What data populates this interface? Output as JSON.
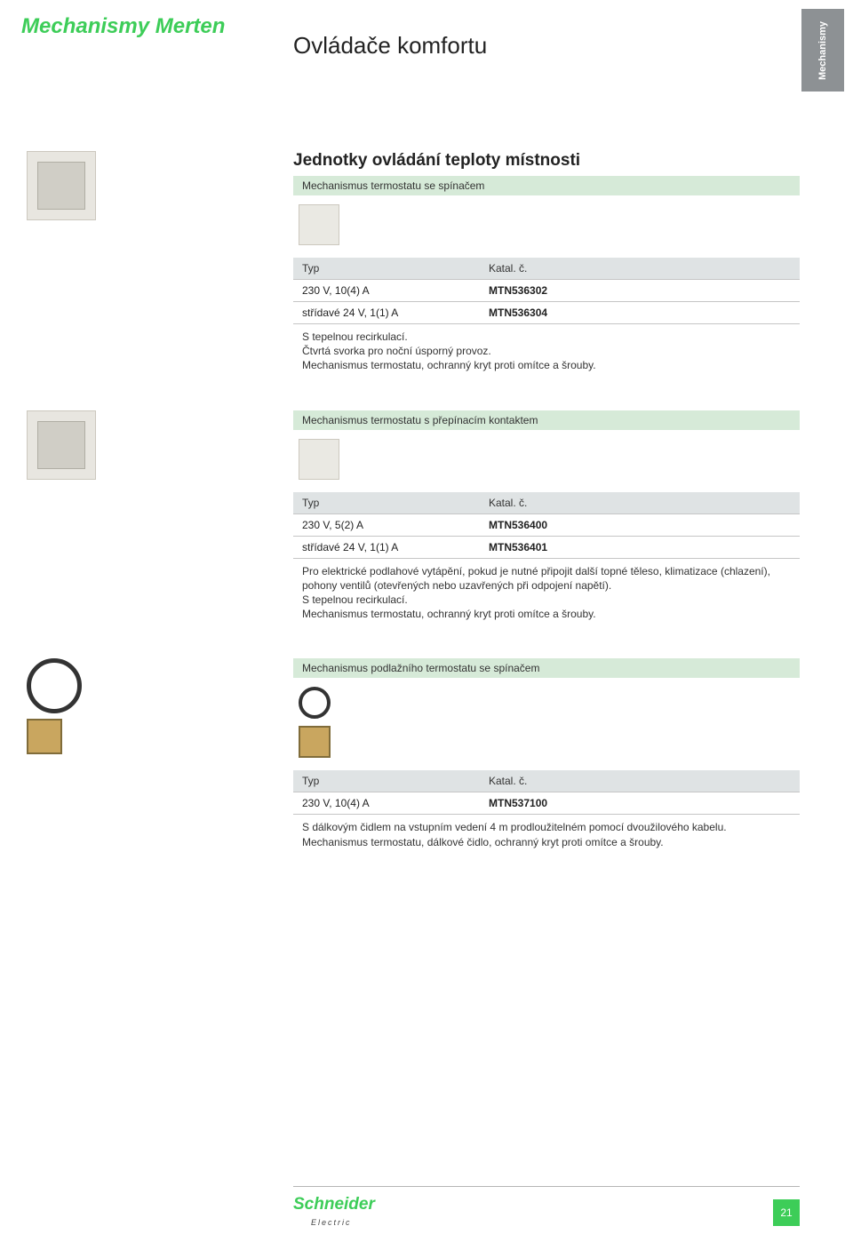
{
  "header": {
    "title_left": "Mechanismy Merten",
    "title_center": "Ovládače komfortu",
    "side_tab": "Mechanismy"
  },
  "colors": {
    "accent": "#3dcd58",
    "green_bar_bg": "#d6ead8",
    "header_bar_bg": "#dfe3e4",
    "side_tab_bg": "#8d9194",
    "border": "#c5c5c5"
  },
  "sections": [
    {
      "side_thumb": "mechanism-1",
      "heading": "Jednotky ovládání teploty místnosti",
      "green_label": "Mechanismus termostatu se spínačem",
      "small_thumb": "mechanism-small-1",
      "table": {
        "header": {
          "type": "Typ",
          "catalog": "Katal. č."
        },
        "rows": [
          {
            "type": "230 V, 10(4) A",
            "catalog": "MTN536302"
          },
          {
            "type": "střídavé 24 V, 1(1) A",
            "catalog": "MTN536304"
          }
        ]
      },
      "description": "S tepelnou recirkulací.\nČtvrtá svorka pro noční úsporný provoz.\nMechanismus termostatu, ochranný kryt proti omítce a šrouby."
    },
    {
      "side_thumb": "mechanism-2",
      "heading": "",
      "green_label": "Mechanismus termostatu s přepínacím kontaktem",
      "small_thumb": "mechanism-small-2",
      "table": {
        "header": {
          "type": "Typ",
          "catalog": "Katal. č."
        },
        "rows": [
          {
            "type": "230 V, 5(2) A",
            "catalog": "MTN536400"
          },
          {
            "type": "střídavé 24 V, 1(1) A",
            "catalog": "MTN536401"
          }
        ]
      },
      "description": "Pro elektrické podlahové vytápění, pokud je nutné připojit další topné těleso, klimatizace (chlazení), pohony ventilů (otevřených nebo uzavřených při odpojení napětí).\nS tepelnou recirkulací.\nMechanismus termostatu, ochranný kryt proti omítce a šrouby."
    },
    {
      "side_thumb": "sensor-cable",
      "heading": "",
      "green_label": "Mechanismus podlažního termostatu se spínačem",
      "small_thumb": "sensor-small",
      "table": {
        "header": {
          "type": "Typ",
          "catalog": "Katal. č."
        },
        "rows": [
          {
            "type": "230 V, 10(4) A",
            "catalog": "MTN537100"
          }
        ]
      },
      "description": "S dálkovým čidlem na vstupním vedení 4 m prodloužitelném pomocí dvoužilového kabelu.\nMechanismus termostatu, dálkové čidlo, ochranný kryt proti omítce a šrouby."
    }
  ],
  "footer": {
    "logo_main": "Schneider",
    "logo_sub": "Electric",
    "page_number": "21"
  }
}
